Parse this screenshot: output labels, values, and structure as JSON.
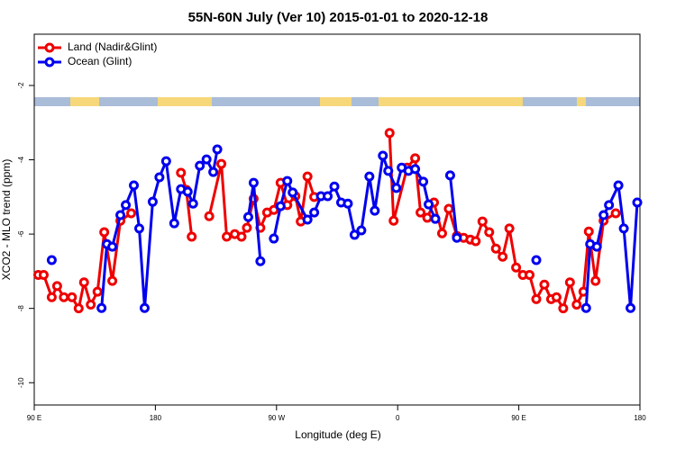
{
  "chart_data": {
    "type": "line",
    "title": "55N-60N July (Ver 10)   2015-01-01 to 2020-12-18",
    "x_label": "Longitude (deg E)",
    "y_label": "XCO2 - MLO trend (ppm)",
    "xlim": [
      90,
      540
    ],
    "xticks": [
      {
        "value": 90,
        "label": "90 E"
      },
      180,
      {
        "value": 270,
        "label": "90 W"
      },
      {
        "value": 360,
        "label": "0"
      },
      {
        "value": 450,
        "label": "90 E"
      },
      {
        "value": 540,
        "label": "180"
      }
    ],
    "ylim": [
      -10.6,
      -0.62
    ],
    "yticks": [
      -2,
      -4,
      -6,
      -8,
      -10
    ],
    "legend": "top-left",
    "series": [
      {
        "name": "Land (Nadir&Glint)",
        "color": "#ee0000",
        "x": [
          93,
          97,
          103,
          107,
          112,
          118,
          123,
          127,
          132,
          137,
          142,
          148,
          154,
          162,
          null,
          199,
          203,
          207,
          null,
          220,
          229,
          233,
          239,
          244,
          248,
          253,
          258,
          263,
          268,
          273,
          278,
          284,
          288,
          293,
          298,
          null,
          354,
          357,
          367,
          373,
          377,
          382,
          387,
          393,
          398,
          404,
          409,
          414,
          418,
          423,
          428,
          433,
          438,
          443,
          448,
          453,
          458,
          463,
          469,
          474,
          478,
          483,
          488,
          493,
          498,
          502,
          507,
          513,
          522
        ],
        "values": [
          -7.1,
          -7.1,
          -7.7,
          -7.4,
          -7.7,
          -7.7,
          -8.0,
          -7.3,
          -7.9,
          -7.55,
          -5.95,
          -7.26,
          -5.64,
          -5.44,
          null,
          -4.35,
          -4.81,
          -6.07,
          null,
          -5.52,
          -4.11,
          -6.07,
          -6.0,
          -6.07,
          -5.83,
          -5.05,
          -5.83,
          -5.42,
          -5.35,
          -4.62,
          -5.22,
          -4.98,
          -5.66,
          -4.45,
          -5.0,
          null,
          -3.28,
          -5.64,
          -4.21,
          -3.96,
          -5.42,
          -5.56,
          -5.15,
          -5.98,
          -5.32,
          -6.05,
          -6.1,
          -6.15,
          -6.19,
          -5.66,
          -5.95,
          -6.39,
          -6.61,
          -5.85,
          -6.9,
          -7.1,
          -7.1,
          -7.75,
          -7.36,
          -7.75,
          -7.7,
          -8.0,
          -7.3,
          -7.9,
          -7.55,
          -5.93,
          -7.26,
          -5.64,
          -5.44
        ]
      },
      {
        "name": "Ocean (Glint)",
        "color": "#0000ee",
        "x": [
          103,
          null,
          140,
          144,
          148,
          154,
          158,
          164,
          168,
          172,
          178,
          183,
          188,
          194,
          199,
          204,
          208,
          213,
          218,
          223,
          226,
          null,
          249,
          253,
          258,
          null,
          268,
          273,
          278,
          282,
          293,
          298,
          303,
          308,
          313,
          318,
          323,
          328,
          333,
          339,
          343,
          349,
          353,
          359,
          363,
          368,
          373,
          379,
          383,
          388,
          null,
          399,
          404,
          null,
          463,
          null,
          500,
          503,
          508,
          513,
          517,
          524,
          528,
          533,
          538
        ],
        "values": [
          -6.7,
          null,
          -7.99,
          -6.27,
          -6.34,
          -5.49,
          -5.22,
          -4.69,
          -5.85,
          -7.99,
          -5.13,
          -4.47,
          -4.04,
          -5.71,
          -4.79,
          -4.86,
          -5.18,
          -4.16,
          -3.99,
          -4.33,
          -3.72,
          null,
          -5.54,
          -4.62,
          -6.73,
          null,
          -6.12,
          -5.25,
          -4.57,
          -4.88,
          -5.61,
          -5.42,
          -4.98,
          -4.98,
          -4.72,
          -5.15,
          -5.18,
          -6.02,
          -5.9,
          -4.45,
          -5.37,
          -3.89,
          -4.3,
          -4.76,
          -4.21,
          -4.3,
          -4.25,
          -4.59,
          -5.2,
          -5.59,
          null,
          -4.42,
          -6.1,
          null,
          -6.7,
          null,
          -7.99,
          -6.27,
          -6.34,
          -5.49,
          -5.22,
          -4.69,
          -5.85,
          -7.99,
          -5.15
        ]
      }
    ]
  }
}
